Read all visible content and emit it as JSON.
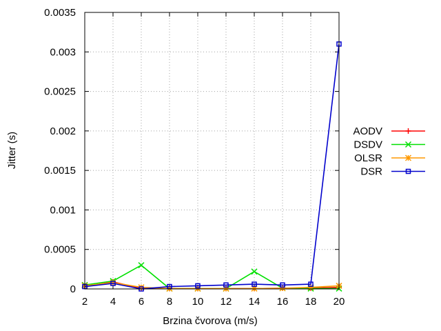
{
  "chart_data": {
    "type": "line",
    "title": "",
    "xlabel": "Brzina čvorova (m/s)",
    "ylabel": "Jitter (s)",
    "x": [
      2,
      4,
      6,
      8,
      10,
      12,
      14,
      16,
      18,
      20
    ],
    "xlim": [
      2,
      20
    ],
    "ylim": [
      0,
      0.0035
    ],
    "x_ticks": [
      "2",
      "4",
      "6",
      "8",
      "10",
      "12",
      "14",
      "16",
      "18",
      "20"
    ],
    "y_ticks": [
      "0",
      "0.0005",
      "0.001",
      "0.0015",
      "0.002",
      "0.0025",
      "0.003",
      "0.0035"
    ],
    "grid": true,
    "legend_position": "right",
    "series": [
      {
        "name": "AODV",
        "color": "#ff0000",
        "marker": "plus",
        "values": [
          3e-05,
          9e-05,
          5e-06,
          5e-06,
          5e-06,
          5e-06,
          5e-06,
          1e-05,
          1e-05,
          2e-05
        ]
      },
      {
        "name": "DSDV",
        "color": "#00e000",
        "marker": "cross",
        "values": [
          5e-05,
          0.0001,
          0.0003,
          5e-06,
          5e-06,
          5e-06,
          0.00022,
          1e-05,
          5e-06,
          5e-06
        ]
      },
      {
        "name": "OLSR",
        "color": "#ff9900",
        "marker": "star",
        "values": [
          4e-05,
          8e-05,
          2e-05,
          5e-06,
          5e-06,
          5e-06,
          5e-06,
          1e-05,
          2e-05,
          4e-05
        ]
      },
      {
        "name": "DSR",
        "color": "#0000cc",
        "marker": "square",
        "values": [
          3e-05,
          7e-05,
          0.0,
          3e-05,
          4e-05,
          5e-05,
          6e-05,
          5e-05,
          6e-05,
          0.0031
        ]
      }
    ]
  }
}
